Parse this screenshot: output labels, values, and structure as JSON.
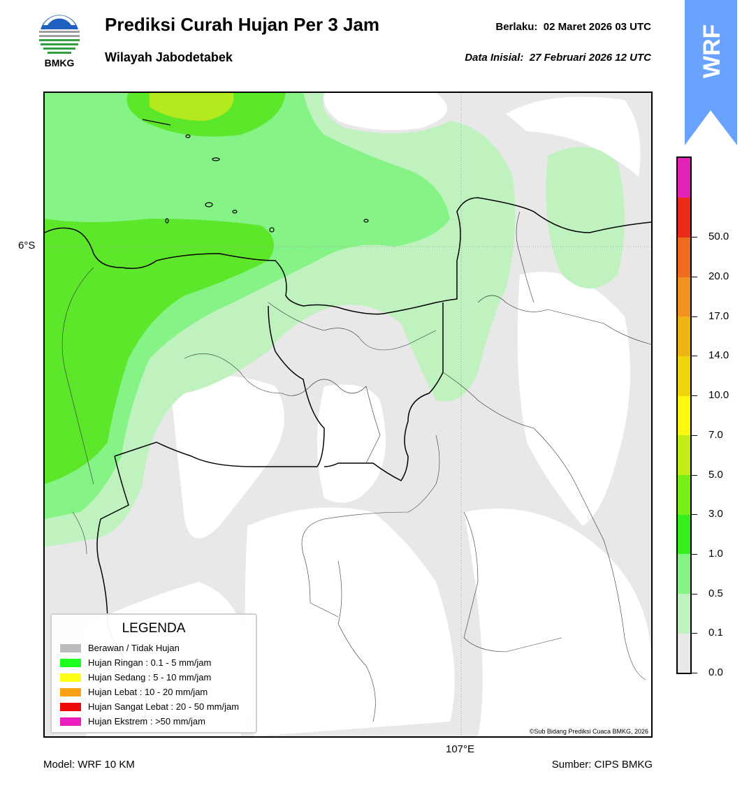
{
  "header": {
    "logo_text": "BMKG",
    "title": "Prediksi Curah Hujan Per 3 Jam",
    "subtitle": "Wilayah Jabodetabek",
    "valid_label": "Berlaku:",
    "valid_value": "02 Maret 2026 03 UTC",
    "initial_label": "Data Inisial:",
    "initial_value": "27 Februari 2026 12 UTC"
  },
  "badge": {
    "text": "WRF",
    "color": "#6aa2ff"
  },
  "axes": {
    "lat_label": "6°S",
    "lon_label": "107°E"
  },
  "legend": {
    "title": "LEGENDA",
    "items": [
      {
        "label": "Berawan / Tidak Hujan",
        "color": "#bdbdbd"
      },
      {
        "label": "Hujan Ringan : 0.1 - 5 mm/jam",
        "color": "#1cff1c"
      },
      {
        "label": "Hujan Sedang : 5 - 10 mm/jam",
        "color": "#ffff16"
      },
      {
        "label": "Hujan Lebat : 10 - 20 mm/jam",
        "color": "#ff9f12"
      },
      {
        "label": "Hujan Sangat Lebat : 20 - 50 mm/jam",
        "color": "#ee0a0a"
      },
      {
        "label": "Hujan Ekstrem : >50 mm/jam",
        "color": "#ea1fbe"
      }
    ]
  },
  "colorbar": {
    "ticks": [
      "0.0",
      "0.1",
      "0.5",
      "1.0",
      "3.0",
      "5.0",
      "7.0",
      "10.0",
      "14.0",
      "17.0",
      "20.0",
      "50.0"
    ],
    "colors": [
      "#e8e8e8",
      "#c0f2c0",
      "#86f386",
      "#38ef1e",
      "#76ef16",
      "#c4ec16",
      "#fcf812",
      "#f2d40e",
      "#efb314",
      "#ef9222",
      "#ef6b1e",
      "#ec2a18",
      "#e422b8"
    ]
  },
  "footer": {
    "model": "Model: WRF 10 KM",
    "source": "Sumber: CIPS BMKG",
    "copyright": "©Sub Bidang Prediksi Cuaca BMKG, 2026"
  }
}
